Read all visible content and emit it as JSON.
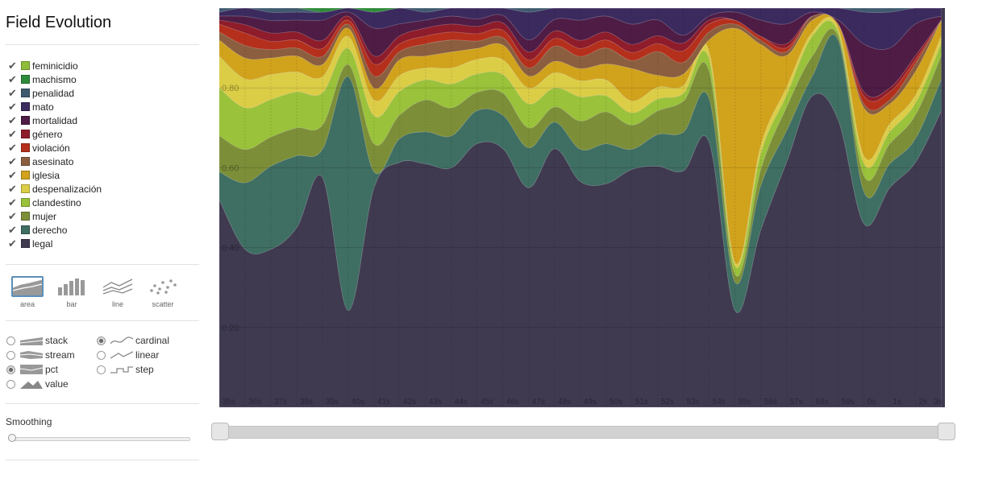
{
  "app": {
    "title": "Field Evolution"
  },
  "legend": [
    {
      "label": "feminicidio",
      "color": "#8fbc3a"
    },
    {
      "label": "machismo",
      "color": "#2e8b3a"
    },
    {
      "label": "penalidad",
      "color": "#3f5a6e"
    },
    {
      "label": "mato",
      "color": "#3b2a5e"
    },
    {
      "label": "mortalidad",
      "color": "#4e1c45"
    },
    {
      "label": "género",
      "color": "#8e1c2a"
    },
    {
      "label": "violación",
      "color": "#b5301c"
    },
    {
      "label": "asesinato",
      "color": "#8a5e3e"
    },
    {
      "label": "iglesia",
      "color": "#d1a21c"
    },
    {
      "label": "despenalización",
      "color": "#dccd47"
    },
    {
      "label": "clandestino",
      "color": "#9ac23a"
    },
    {
      "label": "mujer",
      "color": "#7c8f38"
    },
    {
      "label": "derecho",
      "color": "#3f6e63"
    },
    {
      "label": "legal",
      "color": "#3f3a50"
    }
  ],
  "renderers": [
    {
      "id": "area",
      "label": "area",
      "icon": "area-chart-icon"
    },
    {
      "id": "bar",
      "label": "bar",
      "icon": "bar-chart-icon"
    },
    {
      "id": "line",
      "label": "line",
      "icon": "line-chart-icon"
    },
    {
      "id": "scatter",
      "label": "scatter",
      "icon": "scatter-chart-icon"
    }
  ],
  "offsets": [
    {
      "label": "stack",
      "selected": false
    },
    {
      "label": "stream",
      "selected": false
    },
    {
      "label": "pct",
      "selected": true
    },
    {
      "label": "value",
      "selected": false
    }
  ],
  "interpolations": [
    {
      "label": "cardinal",
      "selected": true
    },
    {
      "label": "linear",
      "selected": false
    },
    {
      "label": "step",
      "selected": false
    }
  ],
  "smoothing": {
    "label": "Smoothing",
    "value": 0
  },
  "range": {
    "start": 0,
    "end": 1
  },
  "chart_data": {
    "type": "area",
    "stack_offset": "pct",
    "interpolation": "cardinal",
    "x": [
      "35s",
      "36s",
      "37s",
      "38s",
      "39s",
      "40s",
      "41s",
      "42s",
      "43s",
      "44s",
      "45s",
      "46s",
      "47s",
      "48s",
      "49s",
      "50s",
      "51s",
      "52s",
      "53s",
      "54s",
      "55s",
      "56s",
      "57s",
      "58s",
      "59s",
      "0s",
      "1s",
      "2s",
      "3s"
    ],
    "yticks": [
      "0.20",
      "0.40",
      "0.60",
      "0.80"
    ],
    "ylim": [
      0,
      1
    ],
    "grid": true,
    "series": [
      {
        "name": "legal",
        "color": "#3f3a50",
        "values": [
          0.52,
          0.38,
          0.38,
          0.45,
          0.57,
          0.24,
          0.55,
          0.62,
          0.61,
          0.6,
          0.72,
          0.7,
          0.55,
          0.68,
          0.56,
          0.56,
          0.59,
          0.61,
          0.61,
          0.67,
          0.24,
          0.44,
          0.62,
          0.78,
          0.72,
          0.46,
          0.55,
          0.62,
          0.75
        ]
      },
      {
        "name": "derecho",
        "color": "#3f6e63",
        "values": [
          0.07,
          0.16,
          0.2,
          0.18,
          0.07,
          0.58,
          0.04,
          0.06,
          0.08,
          0.08,
          0.09,
          0.09,
          0.1,
          0.07,
          0.08,
          0.1,
          0.05,
          0.08,
          0.1,
          0.11,
          0.07,
          0.11,
          0.08,
          0.05,
          0.2,
          0.08,
          0.06,
          0.06,
          0.08
        ]
      },
      {
        "name": "mujer",
        "color": "#7c8f38",
        "values": [
          0.09,
          0.08,
          0.07,
          0.07,
          0.06,
          0.03,
          0.07,
          0.06,
          0.08,
          0.07,
          0.05,
          0.06,
          0.05,
          0.04,
          0.07,
          0.08,
          0.06,
          0.06,
          0.08,
          0.07,
          0.02,
          0.04,
          0.06,
          0.05,
          0.01,
          0.04,
          0.05,
          0.06,
          0.06
        ]
      },
      {
        "name": "clandestino",
        "color": "#9ac23a",
        "values": [
          0.12,
          0.1,
          0.09,
          0.09,
          0.08,
          0.04,
          0.07,
          0.06,
          0.05,
          0.06,
          0.05,
          0.05,
          0.06,
          0.05,
          0.06,
          0.04,
          0.03,
          0.03,
          0.02,
          0.03,
          0.02,
          0.04,
          0.03,
          0.05,
          0.01,
          0.03,
          0.03,
          0.03,
          0.03
        ]
      },
      {
        "name": "despenalización",
        "color": "#dccd47",
        "values": [
          0.08,
          0.07,
          0.06,
          0.05,
          0.04,
          0.03,
          0.04,
          0.04,
          0.03,
          0.04,
          0.04,
          0.04,
          0.04,
          0.04,
          0.04,
          0.04,
          0.03,
          0.03,
          0.02,
          0.02,
          0.01,
          0.02,
          0.02,
          0.01,
          0.01,
          0.02,
          0.02,
          0.02,
          0.02
        ]
      },
      {
        "name": "iglesia",
        "color": "#d1a21c",
        "values": [
          0.04,
          0.05,
          0.04,
          0.04,
          0.03,
          0.02,
          0.03,
          0.04,
          0.03,
          0.04,
          0.03,
          0.04,
          0.03,
          0.03,
          0.03,
          0.04,
          0.08,
          0.03,
          0.03,
          0.03,
          0.58,
          0.25,
          0.08,
          0.03,
          0.01,
          0.12,
          0.05,
          0.06,
          0.04
        ]
      },
      {
        "name": "asesinato",
        "color": "#8a5e3e",
        "values": [
          0.02,
          0.03,
          0.02,
          0.02,
          0.02,
          0.01,
          0.03,
          0.02,
          0.03,
          0.03,
          0.02,
          0.02,
          0.02,
          0.04,
          0.03,
          0.04,
          0.02,
          0.06,
          0.03,
          0.02,
          0.01,
          0.01,
          0.01,
          0.01,
          0.0,
          0.01,
          0.01,
          0.02,
          0.0
        ]
      },
      {
        "name": "violación",
        "color": "#b5301c",
        "values": [
          0.02,
          0.03,
          0.02,
          0.02,
          0.02,
          0.01,
          0.03,
          0.02,
          0.02,
          0.02,
          0.02,
          0.02,
          0.02,
          0.02,
          0.02,
          0.02,
          0.02,
          0.02,
          0.03,
          0.02,
          0.01,
          0.01,
          0.01,
          0.0,
          0.0,
          0.02,
          0.02,
          0.01,
          0.0
        ]
      },
      {
        "name": "género",
        "color": "#8e1c2a",
        "values": [
          0.01,
          0.02,
          0.02,
          0.02,
          0.02,
          0.01,
          0.02,
          0.02,
          0.02,
          0.02,
          0.02,
          0.02,
          0.02,
          0.02,
          0.02,
          0.02,
          0.02,
          0.02,
          0.02,
          0.01,
          0.0,
          0.0,
          0.01,
          0.0,
          0.0,
          0.01,
          0.01,
          0.01,
          0.0
        ]
      },
      {
        "name": "mortalidad",
        "color": "#4e1c45",
        "values": [
          0.01,
          0.02,
          0.03,
          0.03,
          0.05,
          0.01,
          0.07,
          0.03,
          0.02,
          0.02,
          0.02,
          0.02,
          0.03,
          0.03,
          0.05,
          0.04,
          0.05,
          0.04,
          0.02,
          0.01,
          0.02,
          0.04,
          0.05,
          0.01,
          0.01,
          0.12,
          0.1,
          0.08,
          0.01
        ]
      },
      {
        "name": "mato",
        "color": "#3b2a5e",
        "values": [
          0.01,
          0.02,
          0.02,
          0.02,
          0.02,
          0.01,
          0.04,
          0.04,
          0.02,
          0.02,
          0.03,
          0.02,
          0.07,
          0.03,
          0.03,
          0.02,
          0.04,
          0.03,
          0.07,
          0.02,
          0.01,
          0.03,
          0.04,
          0.01,
          0.03,
          0.08,
          0.09,
          0.04,
          0.02
        ]
      },
      {
        "name": "penalidad",
        "color": "#3f5a6e",
        "values": [
          0.01,
          0.0,
          0.01,
          0.01,
          0.0,
          0.0,
          0.0,
          0.0,
          0.01,
          0.0,
          0.0,
          0.0,
          0.01,
          0.0,
          0.0,
          0.0,
          0.0,
          0.0,
          0.0,
          0.0,
          0.0,
          0.0,
          0.0,
          0.0,
          0.0,
          0.01,
          0.01,
          0.0,
          0.0
        ]
      },
      {
        "name": "machismo",
        "color": "#2e8b3a",
        "values": [
          0.0,
          0.0,
          0.0,
          0.0,
          0.01,
          0.0,
          0.01,
          0.0,
          0.0,
          0.0,
          0.0,
          0.0,
          0.0,
          0.0,
          0.0,
          0.0,
          0.0,
          0.0,
          0.0,
          0.0,
          0.0,
          0.0,
          0.0,
          0.0,
          0.0,
          0.0,
          0.0,
          0.0,
          0.0
        ]
      },
      {
        "name": "feminicidio",
        "color": "#8fbc3a",
        "values": [
          0.0,
          0.0,
          0.0,
          0.0,
          0.0,
          0.0,
          0.0,
          0.0,
          0.0,
          0.0,
          0.0,
          0.0,
          0.0,
          0.0,
          0.0,
          0.0,
          0.0,
          0.0,
          0.0,
          0.0,
          0.0,
          0.0,
          0.0,
          0.0,
          0.0,
          0.0,
          0.0,
          0.0,
          0.0
        ]
      }
    ]
  }
}
